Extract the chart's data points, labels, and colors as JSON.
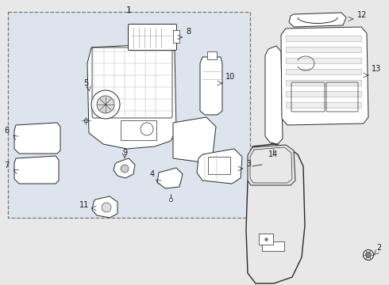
{
  "bg_color": "#e8e8e8",
  "box_bg": "#dde4ed",
  "line_color": "#2a2a2a",
  "label_color": "#1a1a1a",
  "fig_width": 4.9,
  "fig_height": 3.6,
  "dpi": 100
}
